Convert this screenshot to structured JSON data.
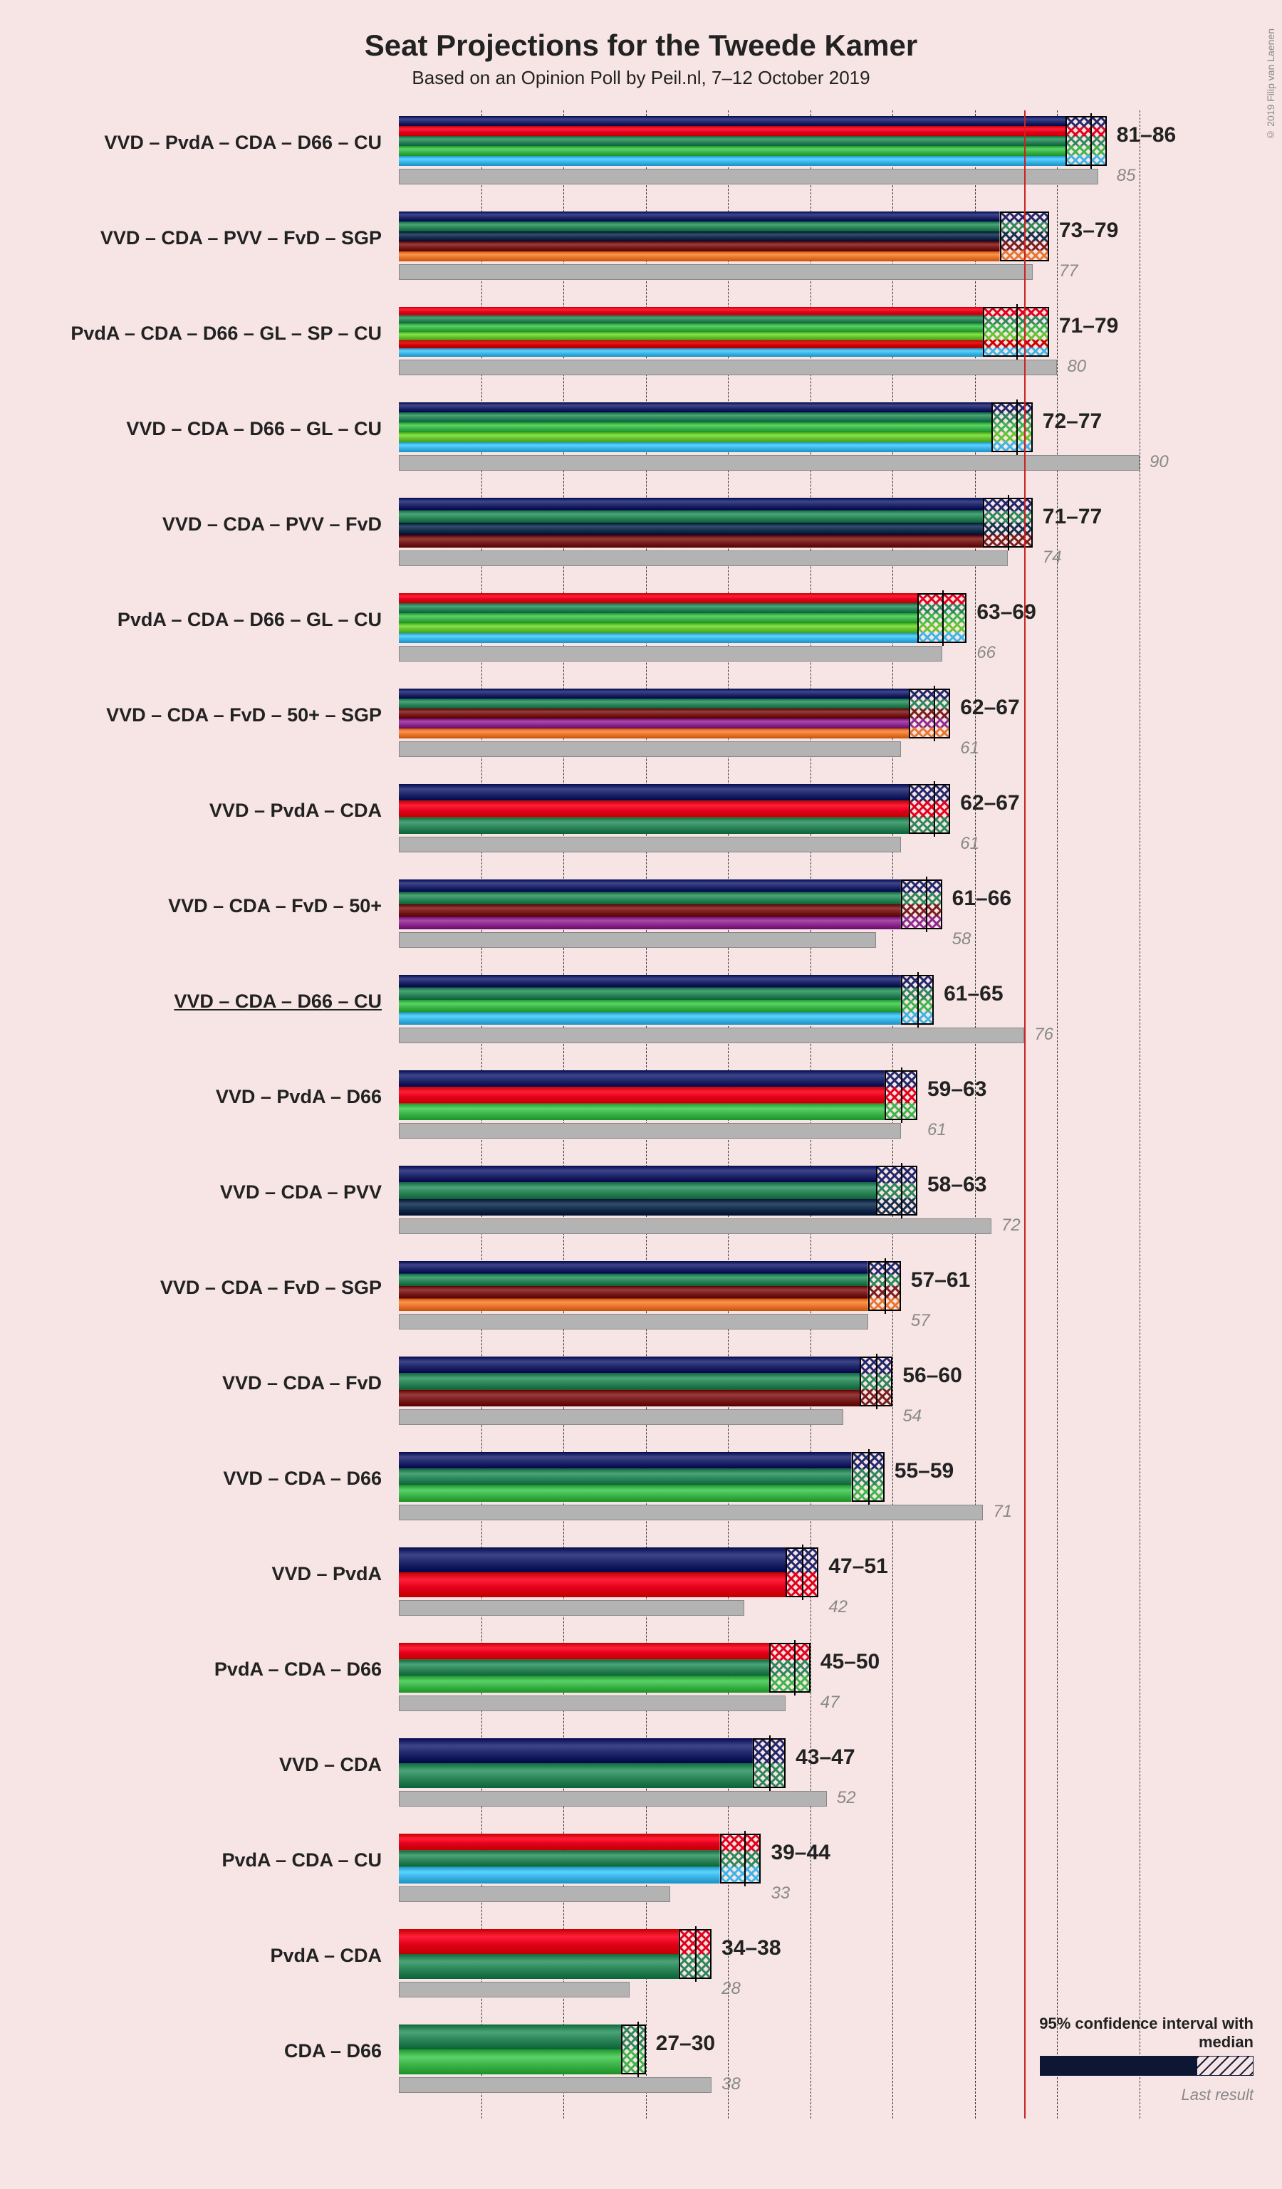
{
  "title": "Seat Projections for the Tweede Kamer",
  "subtitle": "Based on an Opinion Poll by Peil.nl, 7–12 October 2019",
  "copyright": "© 2019 Filip van Laenen",
  "chart": {
    "type": "horizontal-stacked-bar-with-ci",
    "background_color": "#f7e5e5",
    "grid_color": "#333333",
    "grid_style": "dashed",
    "majority_line_value": 76,
    "majority_line_color": "#cc2222",
    "x_min": 0,
    "x_max": 90,
    "x_tick_step": 10,
    "party_colors": {
      "VVD": "#21276b",
      "PvdA": "#e3001b",
      "CDA": "#2d8659",
      "D66": "#3db54a",
      "CU": "#3cb5e6",
      "PVV": "#152f4e",
      "FvD": "#7a1d1d",
      "SGP": "#e8762d",
      "GL": "#66c430",
      "SP": "#cc0000",
      "50+": "#8e2b8e"
    },
    "last_result_color": "#b3b3b3",
    "range_label_color": "#222222",
    "last_label_color": "#888888",
    "title_fontsize": 42,
    "subtitle_fontsize": 26,
    "label_fontsize": 27,
    "range_fontsize": 30,
    "last_fontsize": 24
  },
  "legend": {
    "ci_text": "95% confidence interval with median",
    "last_text": "Last result"
  },
  "rows": [
    {
      "label": "VVD – PvdA – CDA – D66 – CU",
      "parties": [
        "VVD",
        "PvdA",
        "CDA",
        "D66",
        "CU"
      ],
      "low": 81,
      "high": 86,
      "median": 84,
      "last": 85
    },
    {
      "label": "VVD – CDA – PVV – FvD – SGP",
      "parties": [
        "VVD",
        "CDA",
        "PVV",
        "FvD",
        "SGP"
      ],
      "low": 73,
      "high": 79,
      "median": 76,
      "last": 77
    },
    {
      "label": "PvdA – CDA – D66 – GL – SP – CU",
      "parties": [
        "PvdA",
        "CDA",
        "D66",
        "GL",
        "SP",
        "CU"
      ],
      "low": 71,
      "high": 79,
      "median": 75,
      "last": 80
    },
    {
      "label": "VVD – CDA – D66 – GL – CU",
      "parties": [
        "VVD",
        "CDA",
        "D66",
        "GL",
        "CU"
      ],
      "low": 72,
      "high": 77,
      "median": 75,
      "last": 90
    },
    {
      "label": "VVD – CDA – PVV – FvD",
      "parties": [
        "VVD",
        "CDA",
        "PVV",
        "FvD"
      ],
      "low": 71,
      "high": 77,
      "median": 74,
      "last": 74
    },
    {
      "label": "PvdA – CDA – D66 – GL – CU",
      "parties": [
        "PvdA",
        "CDA",
        "D66",
        "GL",
        "CU"
      ],
      "low": 63,
      "high": 69,
      "median": 66,
      "last": 66
    },
    {
      "label": "VVD – CDA – FvD – 50+ – SGP",
      "parties": [
        "VVD",
        "CDA",
        "FvD",
        "50+",
        "SGP"
      ],
      "low": 62,
      "high": 67,
      "median": 65,
      "last": 61
    },
    {
      "label": "VVD – PvdA – CDA",
      "parties": [
        "VVD",
        "PvdA",
        "CDA"
      ],
      "low": 62,
      "high": 67,
      "median": 65,
      "last": 61
    },
    {
      "label": "VVD – CDA – FvD – 50+",
      "parties": [
        "VVD",
        "CDA",
        "FvD",
        "50+"
      ],
      "low": 61,
      "high": 66,
      "median": 64,
      "last": 58
    },
    {
      "label": "VVD – CDA – D66 – CU",
      "parties": [
        "VVD",
        "CDA",
        "D66",
        "CU"
      ],
      "low": 61,
      "high": 65,
      "median": 63,
      "last": 76,
      "underlined": true
    },
    {
      "label": "VVD – PvdA – D66",
      "parties": [
        "VVD",
        "PvdA",
        "D66"
      ],
      "low": 59,
      "high": 63,
      "median": 61,
      "last": 61
    },
    {
      "label": "VVD – CDA – PVV",
      "parties": [
        "VVD",
        "CDA",
        "PVV"
      ],
      "low": 58,
      "high": 63,
      "median": 61,
      "last": 72
    },
    {
      "label": "VVD – CDA – FvD – SGP",
      "parties": [
        "VVD",
        "CDA",
        "FvD",
        "SGP"
      ],
      "low": 57,
      "high": 61,
      "median": 59,
      "last": 57
    },
    {
      "label": "VVD – CDA – FvD",
      "parties": [
        "VVD",
        "CDA",
        "FvD"
      ],
      "low": 56,
      "high": 60,
      "median": 58,
      "last": 54
    },
    {
      "label": "VVD – CDA – D66",
      "parties": [
        "VVD",
        "CDA",
        "D66"
      ],
      "low": 55,
      "high": 59,
      "median": 57,
      "last": 71
    },
    {
      "label": "VVD – PvdA",
      "parties": [
        "VVD",
        "PvdA"
      ],
      "low": 47,
      "high": 51,
      "median": 49,
      "last": 42
    },
    {
      "label": "PvdA – CDA – D66",
      "parties": [
        "PvdA",
        "CDA",
        "D66"
      ],
      "low": 45,
      "high": 50,
      "median": 48,
      "last": 47
    },
    {
      "label": "VVD – CDA",
      "parties": [
        "VVD",
        "CDA"
      ],
      "low": 43,
      "high": 47,
      "median": 45,
      "last": 52
    },
    {
      "label": "PvdA – CDA – CU",
      "parties": [
        "PvdA",
        "CDA",
        "CU"
      ],
      "low": 39,
      "high": 44,
      "median": 42,
      "last": 33
    },
    {
      "label": "PvdA – CDA",
      "parties": [
        "PvdA",
        "CDA"
      ],
      "low": 34,
      "high": 38,
      "median": 36,
      "last": 28
    },
    {
      "label": "CDA – D66",
      "parties": [
        "CDA",
        "D66"
      ],
      "low": 27,
      "high": 30,
      "median": 29,
      "last": 38
    }
  ]
}
